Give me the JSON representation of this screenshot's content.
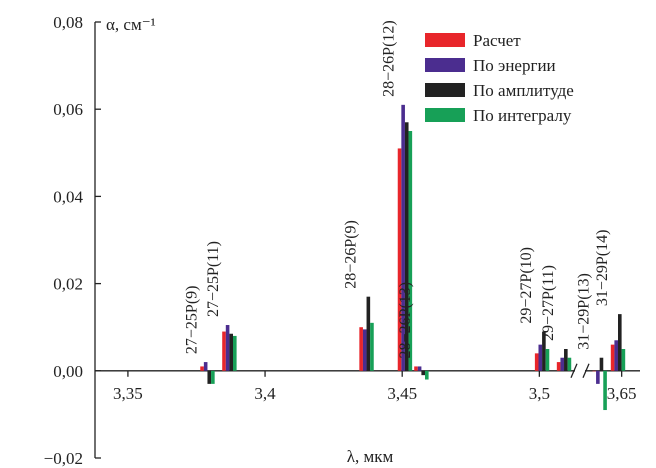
{
  "chart_data": {
    "type": "bar",
    "y_label": "α, см⁻¹",
    "x_label": "λ, мкм",
    "x": [
      3.379,
      3.387,
      3.437,
      3.451,
      3.457,
      3.501,
      3.509,
      3.644,
      3.649
    ],
    "categories": [
      "27−25P(9)",
      "27−25P(11)",
      "28−26P(9)",
      "28−26P(12)",
      "28−26P(13)",
      "29−27P(10)",
      "29−27P(11)",
      "31−29P(13)",
      "31−29P(14)"
    ],
    "series": [
      {
        "name": "Расчет",
        "color": "#e8262b",
        "values": [
          0.001,
          0.009,
          0.01,
          0.051,
          0.001,
          0.004,
          0.002,
          0,
          0.006
        ]
      },
      {
        "name": "По энергии",
        "color": "#4b2d8f",
        "values": [
          0.002,
          0.0105,
          0.0095,
          0.061,
          0.001,
          0.006,
          0.003,
          -0.003,
          0.007
        ]
      },
      {
        "name": "По амплитуде",
        "color": "#222222",
        "values": [
          -0.003,
          0.0085,
          0.017,
          0.057,
          -0.001,
          0.009,
          0.005,
          0.003,
          0.013
        ]
      },
      {
        "name": "По интегралу",
        "color": "#17a057",
        "values": [
          -0.003,
          0.008,
          0.011,
          0.055,
          -0.002,
          0.005,
          0.003,
          -0.009,
          0.005
        ]
      }
    ],
    "xlim": [
      3.338,
      3.655
    ],
    "x_break": [
      3.513,
      3.64
    ],
    "xticks": [
      {
        "value": 3.35,
        "label": "3,35"
      },
      {
        "value": 3.4,
        "label": "3,4"
      },
      {
        "value": 3.45,
        "label": "3,45"
      },
      {
        "value": 3.5,
        "label": "3,5"
      },
      {
        "value": 3.65,
        "label": "3,65"
      }
    ],
    "ylim": [
      -0.02,
      0.08
    ],
    "yticks": [
      {
        "value": -0.02,
        "label": "−0,02"
      },
      {
        "value": 0,
        "label": "0,00"
      },
      {
        "value": 0.02,
        "label": "0,02"
      },
      {
        "value": 0.04,
        "label": "0,04"
      },
      {
        "value": 0.06,
        "label": "0,06"
      },
      {
        "value": 0.08,
        "label": "0,08"
      }
    ],
    "legend": "top-right"
  }
}
